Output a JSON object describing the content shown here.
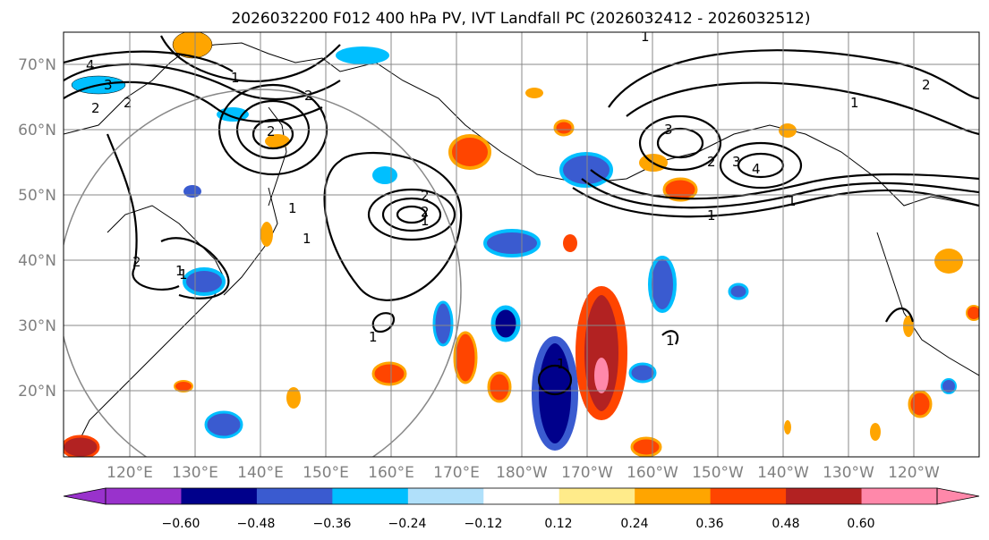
{
  "title": "2026032200 F012 400 hPa PV, IVT Landfall PC (2026032412 - 2026032512)",
  "lat_labels": [
    "70°N",
    "60°N",
    "50°N",
    "40°N",
    "30°N",
    "20°N"
  ],
  "lon_labels": [
    "120°E",
    "130°E",
    "140°E",
    "150°E",
    "160°E",
    "170°E",
    "180°W",
    "170°W",
    "160°W",
    "150°W",
    "140°W",
    "130°W",
    "120°W"
  ],
  "colorbar": {
    "ticks": [
      "−0.60",
      "−0.48",
      "−0.36",
      "−0.24",
      "−0.12",
      "0.12",
      "0.24",
      "0.36",
      "0.48",
      "0.60"
    ],
    "colors": [
      "#9932cc",
      "#00008b",
      "#3a5bd0",
      "#00bfff",
      "#b0e0fa",
      "#ffffff",
      "#ffeb8a",
      "#ffa500",
      "#ff4500",
      "#b22222",
      "#ff88aa"
    ]
  },
  "contour_labels": [
    "4",
    "3",
    "2",
    "2",
    "1",
    "2",
    "2",
    "2",
    "1",
    "1",
    "1",
    "1",
    "1",
    "2",
    "1",
    "2",
    "1",
    "3",
    "2",
    "3",
    "4",
    "1",
    "1",
    "1",
    "1",
    "2",
    "1"
  ]
}
